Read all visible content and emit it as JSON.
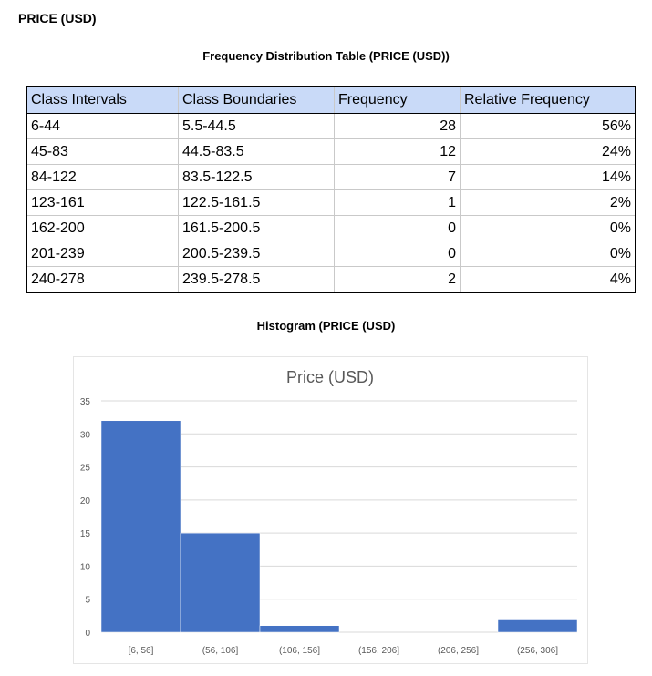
{
  "heading": "PRICE (USD)",
  "table": {
    "title": "Frequency Distribution Table (PRICE (USD))",
    "headers": [
      "Class Intervals",
      "Class Boundaries",
      "Frequency",
      "Relative Frequency"
    ],
    "rows": [
      [
        "6-44",
        "5.5-44.5",
        "28",
        "56%"
      ],
      [
        "45-83",
        "44.5-83.5",
        "12",
        "24%"
      ],
      [
        "84-122",
        "83.5-122.5",
        "7",
        "14%"
      ],
      [
        "123-161",
        "122.5-161.5",
        "1",
        "2%"
      ],
      [
        "162-200",
        "161.5-200.5",
        "0",
        "0%"
      ],
      [
        "201-239",
        "200.5-239.5",
        "0",
        "0%"
      ],
      [
        "240-278",
        "239.5-278.5",
        "2",
        "4%"
      ]
    ]
  },
  "histogram_heading": "Histogram (PRICE (USD)",
  "chart_data": {
    "type": "bar",
    "title": "Price (USD)",
    "categories": [
      "[6, 56]",
      "(56, 106]",
      "(106, 156]",
      "(156, 206]",
      "(206, 256]",
      "(256, 306]"
    ],
    "values": [
      32,
      15,
      1,
      0,
      0,
      2
    ],
    "ylim": [
      0,
      35
    ],
    "yticks": [
      0,
      5,
      10,
      15,
      20,
      25,
      30,
      35
    ],
    "grid": true,
    "bar_color": "#4472c4"
  }
}
